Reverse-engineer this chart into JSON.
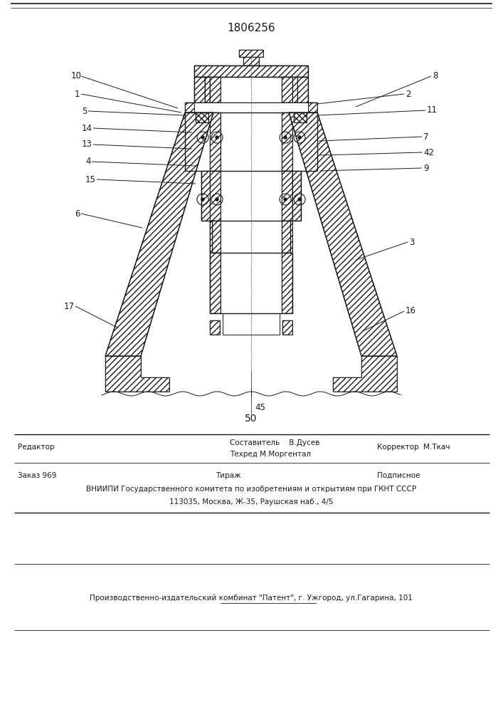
{
  "patent_number": "1806256",
  "bg_color": "#ffffff",
  "line_color": "#1a1a1a",
  "footer": {
    "col1_line1": "Редактор",
    "col2_line1": "Составитель    В.Дусев",
    "col2_line2": "Техред М.Моргентал",
    "col3_line1": "Корректор  М.Ткач",
    "order_text": "Заказ 969",
    "tirazh_text": "Тираж",
    "podpisnoe_text": "Подписное",
    "vniiipi_line": "ВНИИПИ Государственного комитета по изобретениям и открытиям при ГКНТ СССР",
    "address_line": "113035, Москва, Ж-35, Раушская наб., 4/5",
    "plant_line": "Производственно-издательский комбинат \"Патент\", г. Ужгород, ул.Гагарина, 101"
  }
}
